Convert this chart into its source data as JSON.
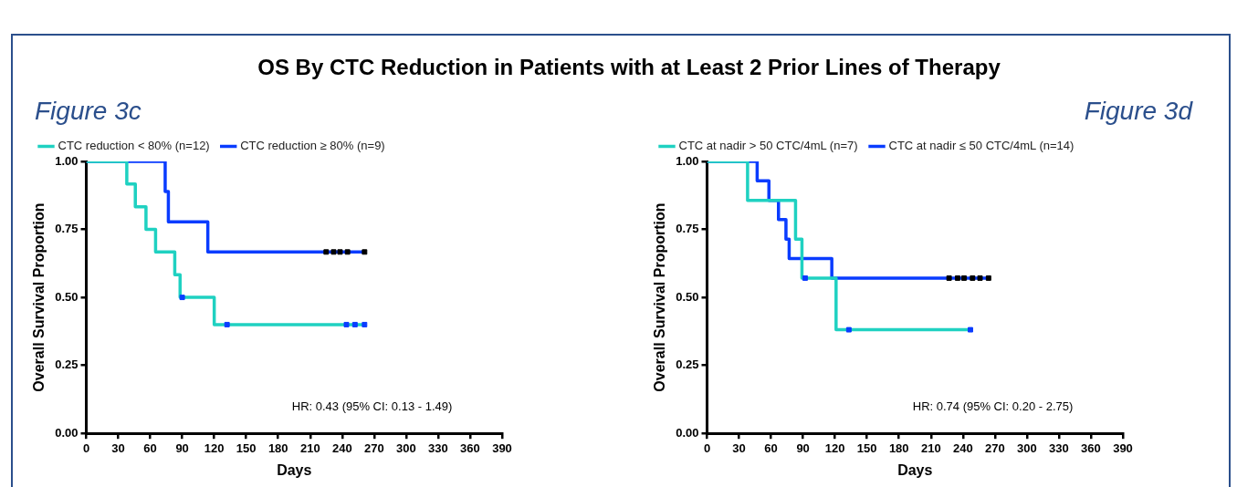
{
  "chart_data": [
    {
      "type": "step",
      "title": "OS By CTC Reduction in Patients with at Least 2 Prior Lines of Therapy",
      "subtitle": "Figure 3c",
      "xlabel": "Days",
      "ylabel": "Overall Survival Proportion",
      "series": [
        {
          "name": "CTC reduction < 80% (n=12)",
          "color": "#1fd1c1",
          "x": [
            0,
            38,
            46,
            56,
            65,
            83,
            88,
            120,
            261
          ],
          "values": [
            1,
            0.917,
            0.833,
            0.75,
            0.667,
            0.583,
            0.5,
            0.4,
            0.4
          ]
        },
        {
          "name": "CTC reduction ≥ 80% (n=9)",
          "color": "#0a3cff",
          "x": [
            0,
            74,
            77,
            114,
            261
          ],
          "values": [
            1,
            0.889,
            0.778,
            0.667,
            0.667
          ]
        },
        {
          "type": "scatter",
          "marker": "square",
          "color": "#0a3cff",
          "x": [
            90,
            132,
            244,
            252,
            261
          ],
          "values": [
            0.5,
            0.4,
            0.4,
            0.4,
            0.4
          ]
        },
        {
          "type": "scatter",
          "marker": "square",
          "color": "#000000",
          "x": [
            225,
            232,
            238,
            245,
            261
          ],
          "values": [
            0.667,
            0.667,
            0.667,
            0.667,
            0.667
          ]
        }
      ],
      "xlim": [
        0,
        390
      ],
      "xticks": [
        0,
        30,
        60,
        90,
        120,
        150,
        180,
        210,
        240,
        270,
        300,
        330,
        360,
        390
      ],
      "ylim": [
        0,
        1
      ],
      "yticks": [
        {
          "value": 0,
          "label": "0.00"
        },
        {
          "value": 0.25,
          "label": "0.25"
        },
        {
          "value": 0.5,
          "label": "0.50"
        },
        {
          "value": 0.75,
          "label": "0.75"
        },
        {
          "value": 1,
          "label": "1.00"
        }
      ],
      "grid": false,
      "legend": "top",
      "annotations": [
        "HR: 0.43 (95% CI: 0.13 - 1.49)"
      ]
    },
    {
      "type": "step",
      "subtitle": "Figure 3d",
      "xlabel": "Days",
      "ylabel": "Overall Survival Proportion",
      "series": [
        {
          "name": "CTC at nadir > 50 CTC/4mL (n=7)",
          "color": "#1fd1c1",
          "x": [
            0,
            38,
            83,
            89,
            121,
            247
          ],
          "values": [
            1,
            0.857,
            0.714,
            0.571,
            0.381,
            0.381
          ]
        },
        {
          "name": "CTC at nadir ≤ 50 CTC/4mL (n=14)",
          "color": "#0a3cff",
          "x": [
            0,
            47,
            58,
            67,
            74,
            77,
            117,
            264
          ],
          "values": [
            1,
            0.929,
            0.857,
            0.786,
            0.714,
            0.643,
            0.571,
            0.571
          ]
        },
        {
          "type": "scatter",
          "marker": "square",
          "color": "#0a3cff",
          "x": [
            92,
            133,
            247
          ],
          "values": [
            0.571,
            0.381,
            0.381
          ]
        },
        {
          "type": "scatter",
          "marker": "square",
          "color": "#000000",
          "x": [
            227,
            235,
            241,
            249,
            256,
            264
          ],
          "values": [
            0.571,
            0.571,
            0.571,
            0.571,
            0.571,
            0.571
          ]
        }
      ],
      "xlim": [
        0,
        390
      ],
      "xticks": [
        0,
        30,
        60,
        90,
        120,
        150,
        180,
        210,
        240,
        270,
        300,
        330,
        360,
        390
      ],
      "ylim": [
        0,
        1
      ],
      "yticks": [
        {
          "value": 0,
          "label": "0.00"
        },
        {
          "value": 0.25,
          "label": "0.25"
        },
        {
          "value": 0.5,
          "label": "0.50"
        },
        {
          "value": 0.75,
          "label": "0.75"
        },
        {
          "value": 1,
          "label": "1.00"
        }
      ],
      "grid": false,
      "legend": "top",
      "annotations": [
        "HR: 0.74 (95% CI: 0.20 - 2.75)"
      ]
    }
  ]
}
